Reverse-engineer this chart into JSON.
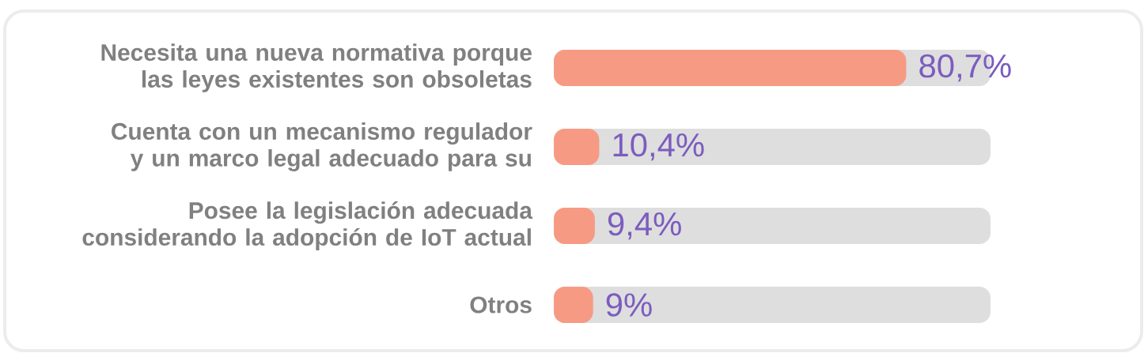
{
  "chart_data": {
    "type": "bar",
    "orientation": "horizontal",
    "categories": [
      "Necesita una nueva normativa porque las leyes existentes son obsoletas",
      "Cuenta con un mecanismo regulador y un marco legal adecuado para su",
      "Posee la legislación adecuada considerando la adopción de IoT actual",
      "Otros"
    ],
    "values": [
      80.7,
      10.4,
      9.4,
      9
    ],
    "value_labels": [
      "80,7%",
      "10,4%",
      "9,4%",
      "9%"
    ],
    "color": "#f79a84",
    "xlim": [
      0,
      100
    ]
  }
}
